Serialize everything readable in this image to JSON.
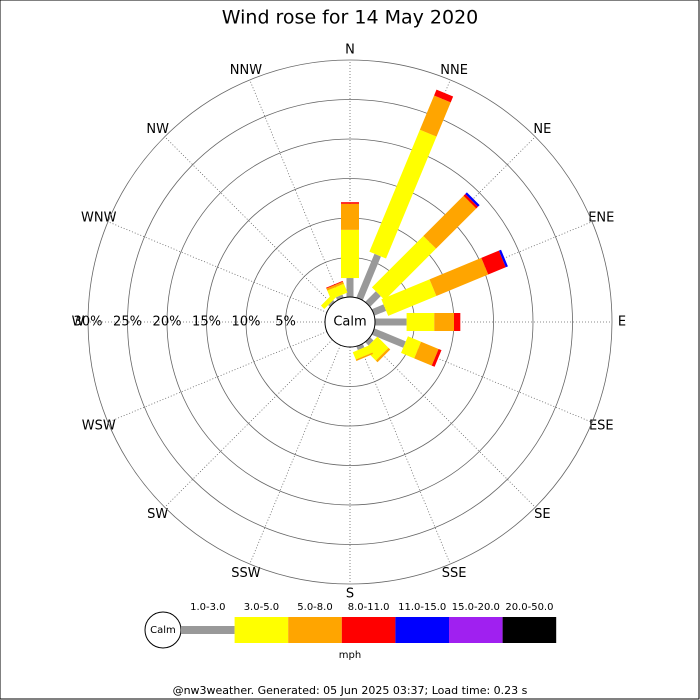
{
  "chart_data": {
    "type": "wind_rose",
    "title": "Wind rose for 14 May 2020",
    "directions": [
      "N",
      "NNE",
      "NE",
      "ENE",
      "E",
      "ESE",
      "SE",
      "SSE",
      "S",
      "SSW",
      "SW",
      "WSW",
      "W",
      "WNW",
      "NW",
      "NNW"
    ],
    "calm_label": "Calm",
    "rlim": [
      0,
      30
    ],
    "rticks": [
      {
        "value": 5,
        "label": "5%"
      },
      {
        "value": 10,
        "label": "10%"
      },
      {
        "value": 15,
        "label": "15%"
      },
      {
        "value": 20,
        "label": "20%"
      },
      {
        "value": 25,
        "label": "25%"
      },
      {
        "value": 30,
        "label": "30%"
      }
    ],
    "series": [
      {
        "name": "1.0-3.0",
        "color": "#999999",
        "values": [
          2.4,
          6.0,
          1.9,
          1.6,
          4.0,
          4.3,
          0.6,
          0.5,
          0,
          0,
          0,
          0,
          0,
          0,
          0.3,
          0.4
        ]
      },
      {
        "name": "3.0-5.0",
        "color": "#ffff00",
        "values": [
          6.1,
          16.7,
          9.2,
          6.6,
          3.5,
          1.8,
          2.0,
          1.0,
          0,
          0,
          0,
          0,
          0,
          0,
          0.6,
          1.2
        ]
      },
      {
        "name": "5.0-8.0",
        "color": "#ffa500",
        "values": [
          3.3,
          4.7,
          7.2,
          7.1,
          2.5,
          2.4,
          0.3,
          0.2,
          0,
          0,
          0,
          0,
          0,
          0,
          0,
          0.3
        ]
      },
      {
        "name": "8.0-11.0",
        "color": "#ff0000",
        "values": [
          0.2,
          0.8,
          0.3,
          2.4,
          0.8,
          0.4,
          0,
          0,
          0,
          0,
          0,
          0,
          0,
          0,
          0,
          0.1
        ]
      },
      {
        "name": "11.0-15.0",
        "color": "#0000ff",
        "values": [
          0,
          0,
          0.3,
          0.3,
          0,
          0,
          0,
          0,
          0,
          0,
          0,
          0,
          0,
          0,
          0,
          0
        ]
      },
      {
        "name": "15.0-20.0",
        "color": "#a020f0",
        "values": [
          0,
          0,
          0,
          0,
          0,
          0,
          0,
          0,
          0,
          0,
          0,
          0,
          0,
          0,
          0,
          0
        ]
      },
      {
        "name": "20.0-50.0",
        "color": "#000000",
        "values": [
          0,
          0,
          0,
          0,
          0,
          0,
          0,
          0,
          0,
          0,
          0,
          0,
          0,
          0,
          0,
          0
        ]
      }
    ],
    "legend_unit": "mph",
    "footer": "@nw3weather. Generated: 05 Jun 2025 03:37; Load time: 0.23 s"
  }
}
